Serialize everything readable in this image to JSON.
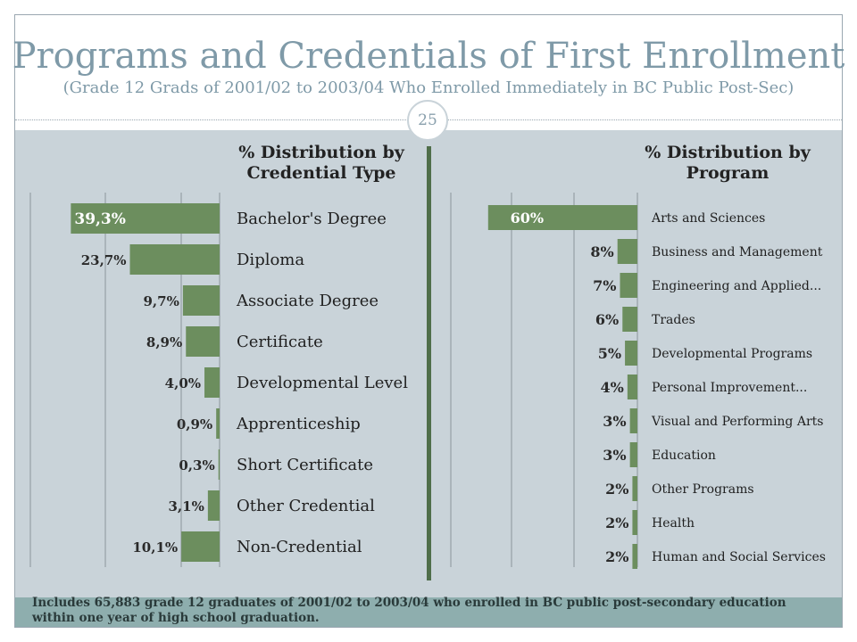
{
  "title": "Programs and Credentials of First Enrollment",
  "subtitle": "(Grade 12 Grads of 2001/02 to 2003/04 Who Enrolled Immediately in BC Public Post-Sec)",
  "page_number": "25",
  "footnote": "Includes 65,883 grade 12 graduates of 2001/02 to 2003/04 who enrolled in BC public post-secondary education within one year of high school graduation.",
  "colors": {
    "bar": "#6c8e5e",
    "panel": "#c9d3d9",
    "title": "#7f9aa8",
    "divider": "#4f6e4a"
  },
  "chart_data": [
    {
      "type": "bar",
      "orientation": "horizontal-reversed",
      "title": "% Distribution by Credential Type",
      "categories": [
        "Bachelor's Degree",
        "Diploma",
        "Associate Degree",
        "Certificate",
        "Developmental Level",
        "Apprenticeship",
        "Short Certificate",
        "Other Credential",
        "Non-Credential"
      ],
      "values": [
        39.3,
        23.7,
        9.7,
        8.9,
        4.0,
        0.9,
        0.3,
        3.1,
        10.1
      ],
      "labels": [
        "39,3%",
        "23,7%",
        "9,7%",
        "8,9%",
        "4,0%",
        "0,9%",
        "0,3%",
        "3,1%",
        "10,1%"
      ],
      "xlim": [
        0,
        50
      ],
      "grid": true
    },
    {
      "type": "bar",
      "orientation": "horizontal-reversed",
      "title": "% Distribution by Program",
      "categories": [
        "Arts and Sciences",
        "Business and Management",
        "Engineering and Applied...",
        "Trades",
        "Developmental Programs",
        "Personal Improvement...",
        "Visual and Performing Arts",
        "Education",
        "Other Programs",
        "Health",
        "Human and Social Services"
      ],
      "values": [
        60,
        8,
        7,
        6,
        5,
        4,
        3,
        3,
        2,
        2,
        2
      ],
      "labels": [
        "60%",
        "8%",
        "7%",
        "6%",
        "5%",
        "4%",
        "3%",
        "3%",
        "2%",
        "2%",
        "2%"
      ],
      "xlim": [
        0,
        75
      ],
      "grid": true
    }
  ]
}
